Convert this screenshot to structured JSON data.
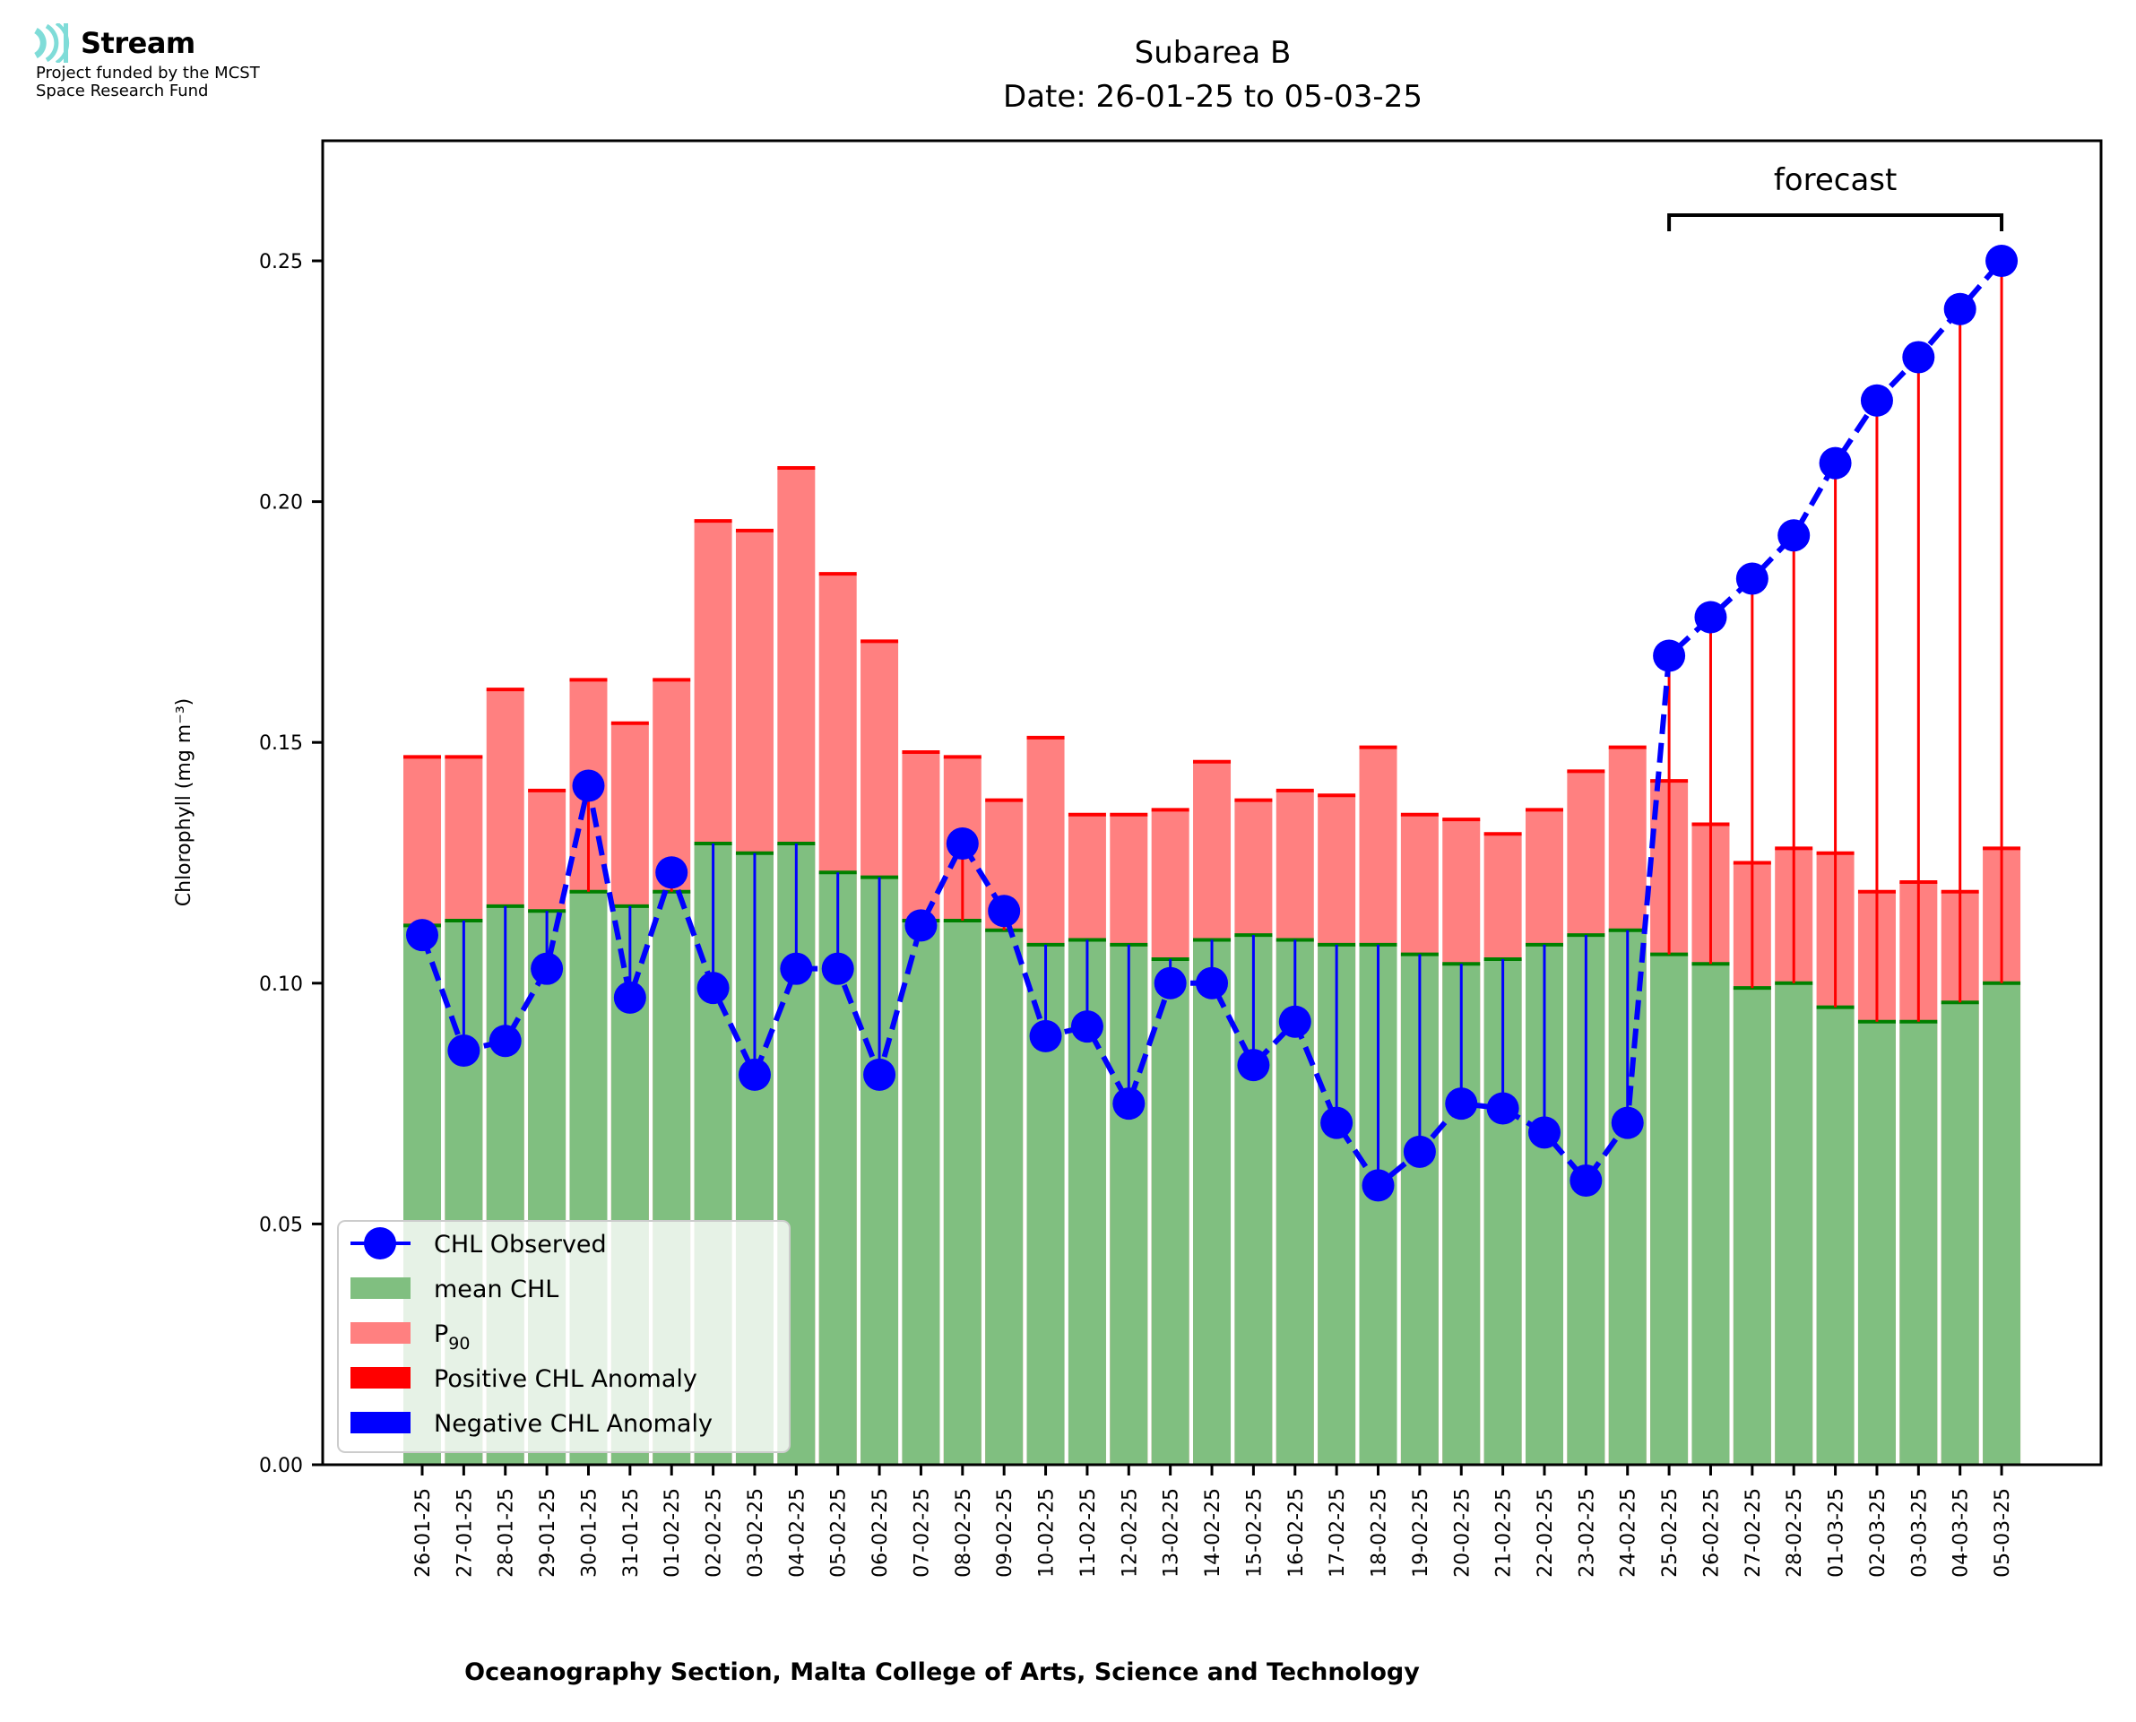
{
  "logo": {
    "name": "Stream",
    "funding_line1": "Project funded by the MCST",
    "funding_line2": "Space Research Fund",
    "color": "#7fdcd8"
  },
  "chart_data": {
    "type": "bar",
    "title": "Subarea B",
    "subtitle": "Date: 26-01-25 to 05-03-25",
    "xlabel": "Oceanography Section, Malta College of Arts, Science and Technology",
    "ylabel": "Chlorophyll (mg m⁻³)",
    "ylim": [
      0,
      0.275
    ],
    "yticks": [
      "0.00",
      "0.05",
      "0.10",
      "0.15",
      "0.20",
      "0.25"
    ],
    "ytick_values": [
      0,
      0.05,
      0.1,
      0.15,
      0.2,
      0.25
    ],
    "grid": false,
    "legend_position": "bottom-left",
    "annotation": {
      "text": "forecast",
      "from": "25-02-25",
      "to": "05-03-25"
    },
    "categories": [
      "26-01-25",
      "27-01-25",
      "28-01-25",
      "29-01-25",
      "30-01-25",
      "31-01-25",
      "01-02-25",
      "02-02-25",
      "03-02-25",
      "04-02-25",
      "05-02-25",
      "06-02-25",
      "07-02-25",
      "08-02-25",
      "09-02-25",
      "10-02-25",
      "11-02-25",
      "12-02-25",
      "13-02-25",
      "14-02-25",
      "15-02-25",
      "16-02-25",
      "17-02-25",
      "18-02-25",
      "19-02-25",
      "20-02-25",
      "21-02-25",
      "22-02-25",
      "23-02-25",
      "24-02-25",
      "25-02-25",
      "26-02-25",
      "27-02-25",
      "28-02-25",
      "01-03-25",
      "02-03-25",
      "03-03-25",
      "04-03-25",
      "05-03-25"
    ],
    "series": [
      {
        "name": "CHL Observed",
        "type": "line",
        "color": "#0000ff",
        "values": [
          0.11,
          0.086,
          0.088,
          0.103,
          0.141,
          0.097,
          0.123,
          0.099,
          0.081,
          0.103,
          0.103,
          0.081,
          0.112,
          0.129,
          0.115,
          0.089,
          0.091,
          0.075,
          0.1,
          0.1,
          0.083,
          0.092,
          0.071,
          0.058,
          0.065,
          0.075,
          0.074,
          0.069,
          0.059,
          0.071,
          0.168,
          0.176,
          0.184,
          0.193,
          0.208,
          0.221,
          0.23,
          0.24,
          0.25
        ]
      },
      {
        "name": "mean CHL",
        "type": "bar",
        "color": "#80bf80",
        "edge_color": "#008000",
        "values": [
          0.112,
          0.113,
          0.116,
          0.115,
          0.119,
          0.116,
          0.119,
          0.129,
          0.127,
          0.129,
          0.123,
          0.122,
          0.113,
          0.113,
          0.111,
          0.108,
          0.109,
          0.108,
          0.105,
          0.109,
          0.11,
          0.109,
          0.108,
          0.108,
          0.106,
          0.104,
          0.105,
          0.108,
          0.11,
          0.111,
          0.106,
          0.104,
          0.099,
          0.1,
          0.095,
          0.092,
          0.092,
          0.096,
          0.1
        ]
      },
      {
        "name": "P₉₀",
        "label_main": "P",
        "label_sub": "90",
        "type": "bar",
        "color": "#ff8080",
        "edge_color": "#ff0000",
        "values": [
          0.147,
          0.147,
          0.161,
          0.14,
          0.163,
          0.154,
          0.163,
          0.196,
          0.194,
          0.207,
          0.185,
          0.171,
          0.148,
          0.147,
          0.138,
          0.151,
          0.135,
          0.135,
          0.136,
          0.146,
          0.138,
          0.14,
          0.139,
          0.149,
          0.135,
          0.134,
          0.131,
          0.136,
          0.144,
          0.149,
          0.142,
          0.133,
          0.125,
          0.128,
          0.127,
          0.119,
          0.121,
          0.119,
          0.128
        ]
      },
      {
        "name": "Positive CHL Anomaly",
        "type": "legend-only",
        "color": "#ff0000"
      },
      {
        "name": "Negative CHL Anomaly",
        "type": "legend-only",
        "color": "#0000ff"
      }
    ]
  }
}
